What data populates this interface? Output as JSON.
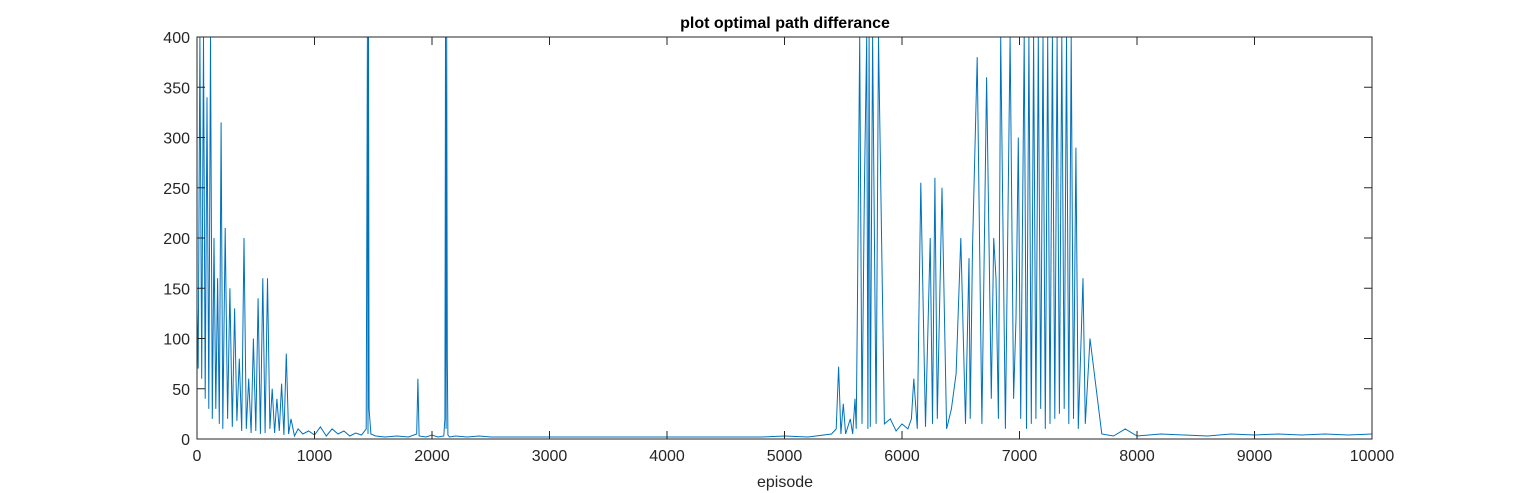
{
  "chart_data": {
    "type": "line",
    "title": "plot optimal path differance",
    "xlabel": "episode",
    "ylabel": "",
    "xlim": [
      0,
      10000
    ],
    "ylim": [
      0,
      400
    ],
    "xticks": [
      0,
      1000,
      2000,
      3000,
      4000,
      5000,
      6000,
      7000,
      8000,
      9000,
      10000
    ],
    "yticks": [
      0,
      50,
      100,
      150,
      200,
      250,
      300,
      350,
      400
    ],
    "grid": false,
    "box": true,
    "series_color": "#0072BD",
    "series": [
      {
        "x": [
          0,
          10,
          25,
          40,
          55,
          70,
          85,
          100,
          115,
          130,
          145,
          160,
          175,
          190,
          205,
          220,
          240,
          260,
          280,
          300,
          320,
          340,
          360,
          380,
          400,
          420,
          440,
          460,
          480,
          500,
          520,
          540,
          560,
          580,
          600,
          620,
          640,
          660,
          680,
          700,
          720,
          740,
          760,
          780,
          800,
          830,
          860,
          900,
          950,
          1000,
          1050,
          1100,
          1150,
          1200,
          1250,
          1300,
          1350,
          1400,
          1440,
          1450,
          1455,
          1460,
          1465,
          1480,
          1520,
          1600,
          1700,
          1800,
          1870,
          1880,
          1890,
          1950,
          2000,
          2050,
          2100,
          2110,
          2115,
          2120,
          2125,
          2130,
          2135,
          2150,
          2200,
          2300,
          2400,
          2500,
          2600,
          2700,
          2800,
          2900,
          3000,
          3200,
          3400,
          3600,
          3800,
          4000,
          4200,
          4400,
          4600,
          4800,
          5000,
          5200,
          5400,
          5440,
          5460,
          5480,
          5500,
          5520,
          5560,
          5580,
          5600,
          5610,
          5620,
          5640,
          5660,
          5680,
          5700,
          5710,
          5720,
          5730,
          5750,
          5780,
          5800,
          5850,
          5900,
          5950,
          6000,
          6050,
          6080,
          6100,
          6130,
          6160,
          6200,
          6240,
          6260,
          6280,
          6300,
          6340,
          6380,
          6420,
          6460,
          6500,
          6540,
          6570,
          6580,
          6600,
          6640,
          6680,
          6720,
          6760,
          6780,
          6800,
          6820,
          6840,
          6880,
          6920,
          6950,
          6970,
          6990,
          7010,
          7040,
          7060,
          7080,
          7100,
          7120,
          7140,
          7160,
          7180,
          7200,
          7220,
          7240,
          7260,
          7280,
          7300,
          7320,
          7340,
          7360,
          7380,
          7400,
          7420,
          7440,
          7460,
          7480,
          7500,
          7540,
          7560,
          7600,
          7700,
          7800,
          7900,
          8000,
          8200,
          8400,
          8600,
          8800,
          9000,
          9200,
          9400,
          9600,
          9800,
          10000
        ],
        "values": [
          130,
          70,
          400,
          60,
          400,
          40,
          340,
          30,
          400,
          20,
          200,
          30,
          160,
          15,
          315,
          10,
          210,
          20,
          150,
          12,
          130,
          18,
          80,
          8,
          200,
          10,
          60,
          6,
          100,
          8,
          140,
          5,
          160,
          6,
          160,
          10,
          50,
          6,
          40,
          8,
          55,
          4,
          85,
          5,
          20,
          3,
          10,
          5,
          8,
          4,
          12,
          3,
          10,
          5,
          8,
          3,
          6,
          4,
          10,
          400,
          5,
          400,
          30,
          5,
          3,
          2,
          3,
          2,
          5,
          60,
          3,
          2,
          4,
          2,
          3,
          20,
          400,
          10,
          400,
          80,
          4,
          2,
          3,
          2,
          3,
          2,
          2,
          2,
          2,
          2,
          2,
          2,
          2,
          2,
          2,
          2,
          2,
          2,
          2,
          2,
          3,
          2,
          5,
          10,
          72,
          5,
          35,
          5,
          20,
          5,
          40,
          10,
          130,
          400,
          15,
          250,
          400,
          10,
          400,
          12,
          400,
          15,
          400,
          15,
          20,
          8,
          15,
          10,
          20,
          60,
          10,
          255,
          12,
          200,
          15,
          260,
          20,
          250,
          10,
          30,
          65,
          200,
          15,
          180,
          20,
          190,
          380,
          15,
          360,
          40,
          200,
          160,
          20,
          400,
          10,
          400,
          40,
          120,
          300,
          20,
          400,
          10,
          400,
          15,
          400,
          20,
          400,
          30,
          400,
          10,
          400,
          15,
          400,
          20,
          400,
          25,
          400,
          30,
          400,
          15,
          400,
          20,
          290,
          10,
          160,
          15,
          100,
          5,
          3,
          10,
          3,
          5,
          4,
          3,
          5,
          4,
          5,
          4,
          5,
          4,
          5
        ]
      }
    ]
  }
}
